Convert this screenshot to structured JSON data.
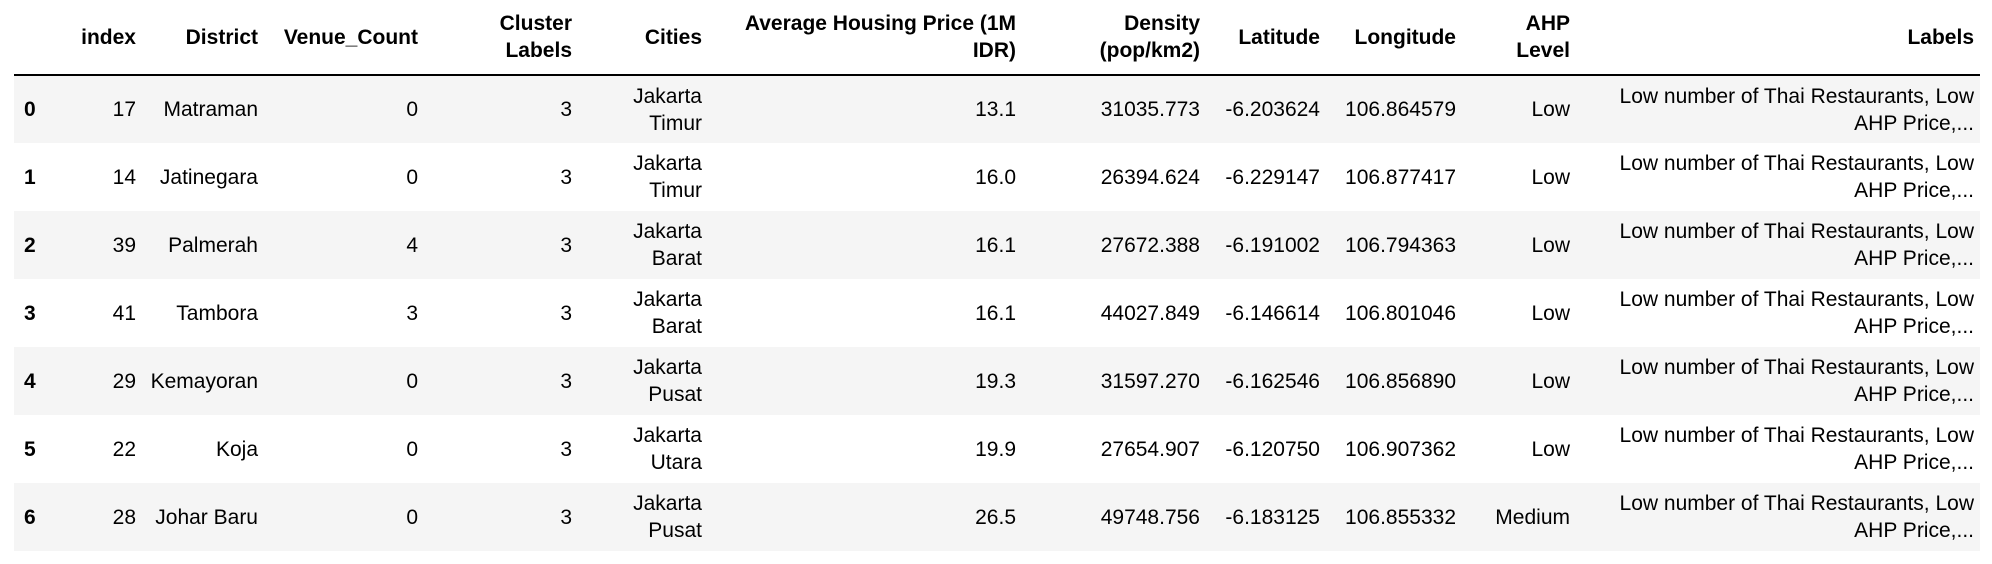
{
  "table": {
    "columns": [
      "",
      "index",
      "District",
      "Venue_Count",
      "Cluster Labels",
      "Cities",
      "Average Housing Price (1M IDR)",
      "Density (pop/km2)",
      "Latitude",
      "Longitude",
      "AHP Level",
      "Labels"
    ],
    "rows": [
      [
        "0",
        "17",
        "Matraman",
        "0",
        "3",
        "Jakarta Timur",
        "13.1",
        "31035.773",
        "-6.203624",
        "106.864579",
        "Low",
        "Low number of Thai Restaurants, Low AHP Price,..."
      ],
      [
        "1",
        "14",
        "Jatinegara",
        "0",
        "3",
        "Jakarta Timur",
        "16.0",
        "26394.624",
        "-6.229147",
        "106.877417",
        "Low",
        "Low number of Thai Restaurants, Low AHP Price,..."
      ],
      [
        "2",
        "39",
        "Palmerah",
        "4",
        "3",
        "Jakarta Barat",
        "16.1",
        "27672.388",
        "-6.191002",
        "106.794363",
        "Low",
        "Low number of Thai Restaurants, Low AHP Price,..."
      ],
      [
        "3",
        "41",
        "Tambora",
        "3",
        "3",
        "Jakarta Barat",
        "16.1",
        "44027.849",
        "-6.146614",
        "106.801046",
        "Low",
        "Low number of Thai Restaurants, Low AHP Price,..."
      ],
      [
        "4",
        "29",
        "Kemayoran",
        "0",
        "3",
        "Jakarta Pusat",
        "19.3",
        "31597.270",
        "-6.162546",
        "106.856890",
        "Low",
        "Low number of Thai Restaurants, Low AHP Price,..."
      ],
      [
        "5",
        "22",
        "Koja",
        "0",
        "3",
        "Jakarta Utara",
        "19.9",
        "27654.907",
        "-6.120750",
        "106.907362",
        "Low",
        "Low number of Thai Restaurants, Low AHP Price,..."
      ],
      [
        "6",
        "28",
        "Johar Baru",
        "0",
        "3",
        "Jakarta Pusat",
        "26.5",
        "49748.756",
        "-6.183125",
        "106.855332",
        "Medium",
        "Low number of Thai Restaurants, Low AHP Price,..."
      ]
    ]
  }
}
